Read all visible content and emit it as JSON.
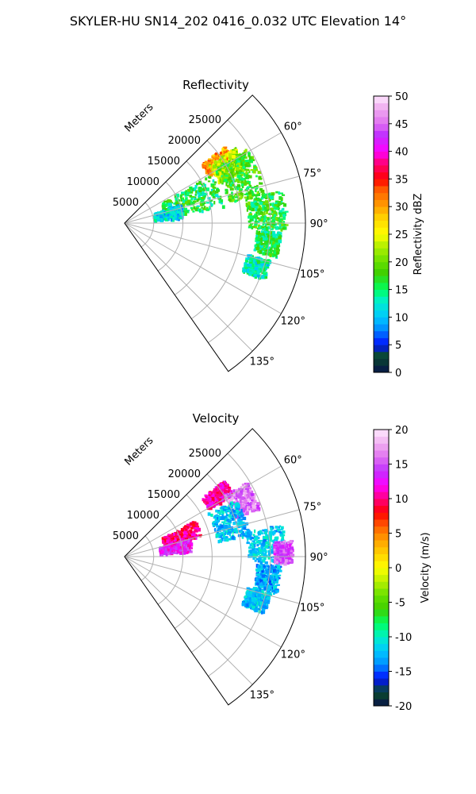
{
  "suptitle": "SKYLER-HU  SN14_202  0416_0.032 UTC Elevation 14°",
  "chart_data": [
    {
      "type": "polar-ppi-sector",
      "title": "Reflectivity",
      "radial_label": "Meters",
      "radial_ticks": [
        "5000",
        "10000",
        "15000",
        "20000",
        "25000"
      ],
      "radial_tick_values": [
        5000,
        10000,
        15000,
        20000,
        25000
      ],
      "rlim": [
        0,
        31000
      ],
      "azimuth_range_deg": [
        45,
        145
      ],
      "azimuth_ticks": [
        "60°",
        "75°",
        "90°",
        "105°",
        "120°",
        "135°"
      ],
      "azimuth_tick_values": [
        60,
        75,
        90,
        105,
        120,
        135
      ],
      "grid": true,
      "colorbar": {
        "label": "Reflectivity dBZ",
        "ticks": [
          "0",
          "5",
          "10",
          "15",
          "20",
          "25",
          "30",
          "35",
          "40",
          "45",
          "50"
        ],
        "range": [
          0,
          50
        ]
      },
      "echo_regions": [
        {
          "az": [
            52,
            60
          ],
          "r": [
            16500,
            21500
          ],
          "value": 30
        },
        {
          "az": [
            55,
            66
          ],
          "r": [
            17500,
            23000
          ],
          "value": 22
        },
        {
          "az": [
            58,
            78
          ],
          "r": [
            18000,
            24500
          ],
          "value": 18
        },
        {
          "az": [
            78,
            92
          ],
          "r": [
            21000,
            27500
          ],
          "value": 17
        },
        {
          "az": [
            93,
            102
          ],
          "r": [
            22500,
            26500
          ],
          "value": 16
        },
        {
          "az": [
            104,
            112
          ],
          "r": [
            21500,
            25500
          ],
          "value": 13
        },
        {
          "az": [
            60,
            80
          ],
          "r": [
            7000,
            17000
          ],
          "value": 16
        },
        {
          "az": [
            70,
            84
          ],
          "r": [
            5000,
            10000
          ],
          "value": 11
        }
      ]
    },
    {
      "type": "polar-ppi-sector",
      "title": "Velocity",
      "radial_label": "Meters",
      "radial_ticks": [
        "5000",
        "10000",
        "15000",
        "20000",
        "25000"
      ],
      "radial_tick_values": [
        5000,
        10000,
        15000,
        20000,
        25000
      ],
      "rlim": [
        0,
        31000
      ],
      "azimuth_range_deg": [
        45,
        145
      ],
      "azimuth_ticks": [
        "60°",
        "75°",
        "90°",
        "105°",
        "120°",
        "135°"
      ],
      "azimuth_tick_values": [
        60,
        75,
        90,
        105,
        120,
        135
      ],
      "grid": true,
      "colorbar": {
        "label": "Velocity (m/s)",
        "ticks": [
          "-20",
          "-15",
          "-10",
          "-5",
          "0",
          "5",
          "10",
          "15",
          "20"
        ],
        "range": [
          -20,
          20
        ]
      },
      "echo_regions": [
        {
          "az": [
            52,
            60
          ],
          "r": [
            16500,
            21500
          ],
          "value": 11
        },
        {
          "az": [
            58,
            70
          ],
          "r": [
            20000,
            24500
          ],
          "value": 16
        },
        {
          "az": [
            62,
            80
          ],
          "r": [
            16000,
            21500
          ],
          "value": -12
        },
        {
          "az": [
            78,
            92
          ],
          "r": [
            21000,
            27500
          ],
          "value": -12
        },
        {
          "az": [
            84,
            92
          ],
          "r": [
            25500,
            28500
          ],
          "value": 15
        },
        {
          "az": [
            93,
            104
          ],
          "r": [
            22500,
            26500
          ],
          "value": -13
        },
        {
          "az": [
            104,
            112
          ],
          "r": [
            21500,
            25500
          ],
          "value": -12
        },
        {
          "az": [
            62,
            75
          ],
          "r": [
            7000,
            13500
          ],
          "value": 10
        },
        {
          "az": [
            73,
            85
          ],
          "r": [
            6000,
            11500
          ],
          "value": 13
        }
      ]
    }
  ],
  "colors": {
    "axes": "#000000",
    "grid": "#b0b0b0",
    "background": "#ffffff"
  }
}
